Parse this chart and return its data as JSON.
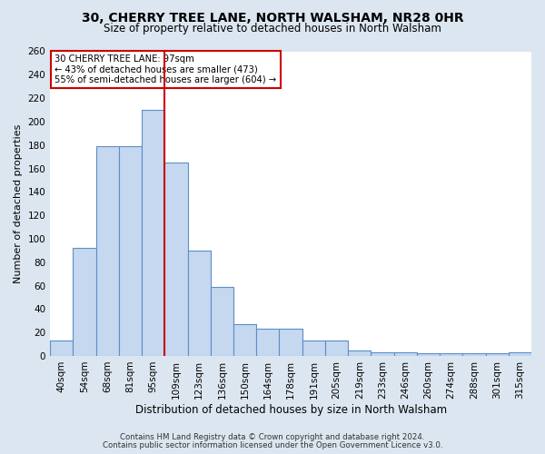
{
  "title": "30, CHERRY TREE LANE, NORTH WALSHAM, NR28 0HR",
  "subtitle": "Size of property relative to detached houses in North Walsham",
  "xlabel": "Distribution of detached houses by size in North Walsham",
  "ylabel": "Number of detached properties",
  "bar_labels": [
    "40sqm",
    "54sqm",
    "68sqm",
    "81sqm",
    "95sqm",
    "109sqm",
    "123sqm",
    "136sqm",
    "150sqm",
    "164sqm",
    "178sqm",
    "191sqm",
    "205sqm",
    "219sqm",
    "233sqm",
    "246sqm",
    "260sqm",
    "274sqm",
    "288sqm",
    "301sqm",
    "315sqm"
  ],
  "bar_values": [
    13,
    92,
    179,
    179,
    210,
    165,
    90,
    59,
    27,
    23,
    23,
    13,
    13,
    5,
    3,
    3,
    2,
    2,
    2,
    2,
    3
  ],
  "bar_color": "#c5d8f0",
  "bar_edge_color": "#5b8ec9",
  "annotation_title": "30 CHERRY TREE LANE: 97sqm",
  "annotation_line1": "← 43% of detached houses are smaller (473)",
  "annotation_line2": "55% of semi-detached houses are larger (604) →",
  "vline_color": "#cc0000",
  "ylim": [
    0,
    260
  ],
  "yticks": [
    0,
    20,
    40,
    60,
    80,
    100,
    120,
    140,
    160,
    180,
    200,
    220,
    240,
    260
  ],
  "footnote1": "Contains HM Land Registry data © Crown copyright and database right 2024.",
  "footnote2": "Contains public sector information licensed under the Open Government Licence v3.0.",
  "fig_bg_color": "#dce6f0",
  "plot_bg_color": "#ffffff",
  "grid_color": "#ffffff",
  "title_fontsize": 10,
  "subtitle_fontsize": 8.5,
  "ylabel_fontsize": 8,
  "xlabel_fontsize": 8.5,
  "tick_fontsize": 7.5,
  "footnote_fontsize": 6.2
}
